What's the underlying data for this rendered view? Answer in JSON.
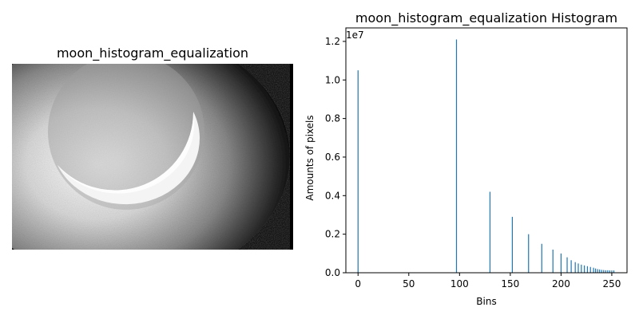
{
  "image_panel": {
    "title": "moon_histogram_equalization"
  },
  "chart_data": {
    "type": "bar",
    "title": "moon_histogram_equalization Histogram",
    "xlabel": "Bins",
    "ylabel": "Amounts of pixels",
    "y_offset_label": "1e7",
    "xlim": [
      -12,
      265
    ],
    "ylim": [
      0,
      12700000
    ],
    "x_ticks": [
      0,
      50,
      100,
      150,
      200,
      250
    ],
    "y_ticks": [
      0,
      2000000,
      4000000,
      6000000,
      8000000,
      10000000,
      12000000
    ],
    "y_tick_labels": [
      "0.0",
      "0.2",
      "0.4",
      "0.6",
      "0.8",
      "1.0",
      "1.2"
    ],
    "bar_color": "#1f77b4",
    "grid": false,
    "x": [
      0,
      97,
      130,
      152,
      168,
      181,
      192,
      200,
      206,
      210,
      214,
      217,
      220,
      223,
      226,
      229,
      232,
      234,
      236,
      238,
      240,
      242,
      244,
      246,
      248,
      250,
      252
    ],
    "values": [
      10500000,
      12100000,
      4200000,
      2900000,
      2000000,
      1500000,
      1200000,
      1000000,
      800000,
      650000,
      550000,
      480000,
      420000,
      380000,
      340000,
      300000,
      260000,
      220000,
      190000,
      170000,
      150000,
      140000,
      130000,
      130000,
      120000,
      120000,
      120000
    ]
  }
}
